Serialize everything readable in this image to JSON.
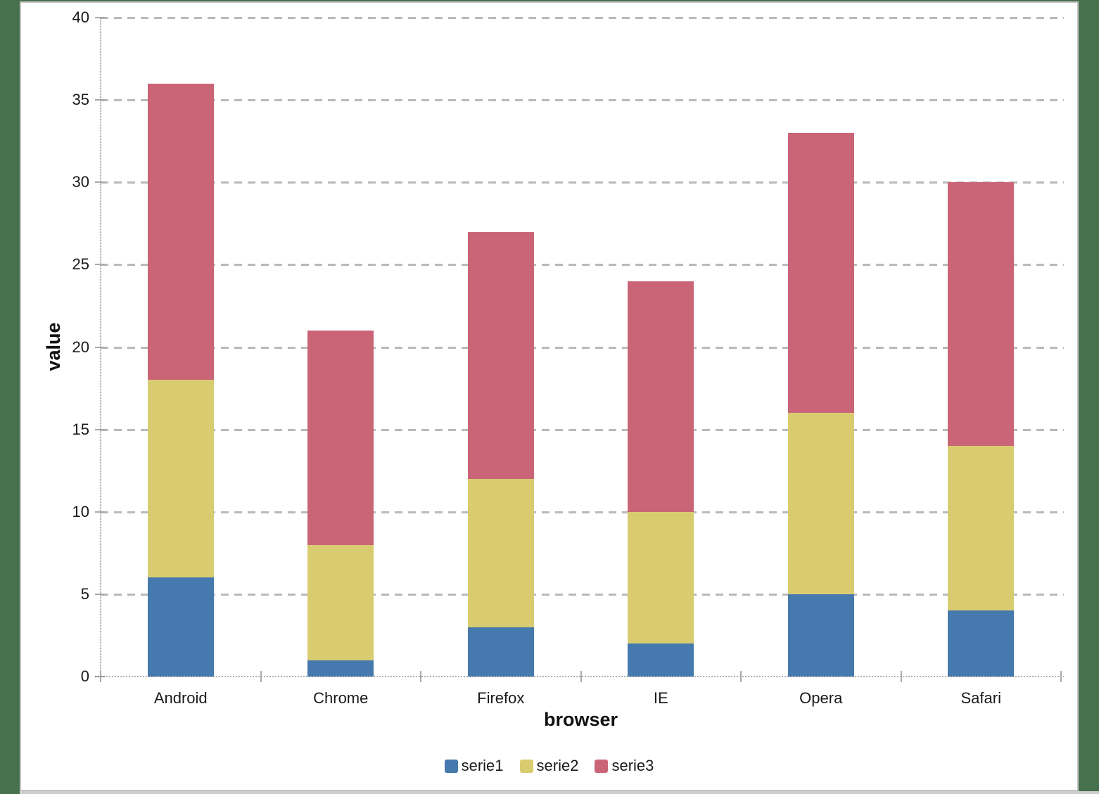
{
  "app": {
    "background_color": "#47704d",
    "panel_background": "#ffffff",
    "panel_border_color": "#c3c3c3",
    "bottom_strip_color": "#cdcdcd"
  },
  "chart_data": {
    "type": "bar",
    "stacked": true,
    "xlabel": "browser",
    "ylabel": "value",
    "categories": [
      "Android",
      "Chrome",
      "Firefox",
      "IE",
      "Opera",
      "Safari"
    ],
    "series": [
      {
        "name": "serie1",
        "color": "#4679ad",
        "values": [
          6,
          1,
          3,
          2,
          5,
          4
        ]
      },
      {
        "name": "serie2",
        "color": "#d9cc70",
        "values": [
          12,
          7,
          9,
          8,
          11,
          10
        ]
      },
      {
        "name": "serie3",
        "color": "#ca6577",
        "values": [
          18,
          13,
          15,
          14,
          17,
          16
        ]
      }
    ],
    "stack_totals": [
      36,
      21,
      27,
      24,
      33,
      30
    ],
    "ylim": [
      0,
      40
    ],
    "ytick_step": 5,
    "yticks": [
      0,
      5,
      10,
      15,
      20,
      25,
      30,
      35,
      40
    ],
    "grid": true,
    "gridline_color": "#b9b9b9",
    "axis_color": "#a9a9a9",
    "legend_position": "bottom"
  }
}
